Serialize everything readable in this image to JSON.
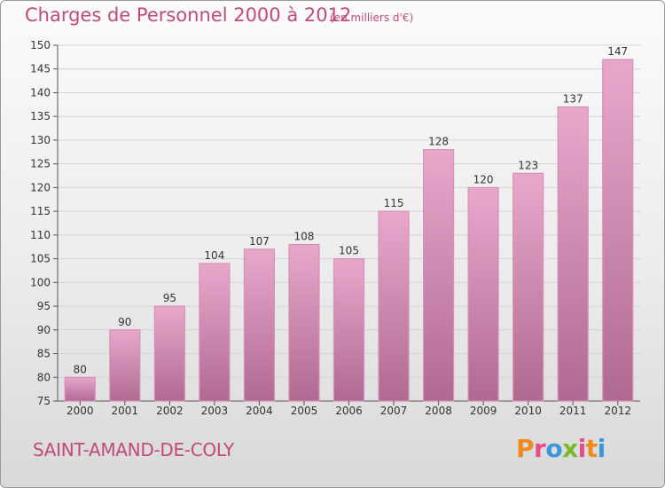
{
  "header": {
    "title": "Charges de Personnel 2000 à 2012",
    "subtitle": "(en milliers d'€)"
  },
  "footer": {
    "commune": "SAINT-AMAND-DE-COLY",
    "logo": "Proxiti"
  },
  "colors": {
    "bar_top": "#e8a8cc",
    "bar_bottom": "#b06a92",
    "title": "#c24a7a",
    "logo": [
      "#f08a1c",
      "#e84a8a",
      "#3a98d8",
      "#7ab828",
      "#e84a8a",
      "#f08a1c",
      "#3a98d8"
    ]
  },
  "chart_data": {
    "type": "bar",
    "title": "Charges de Personnel 2000 à 2012",
    "subtitle": "(en milliers d'€)",
    "categories": [
      "2000",
      "2001",
      "2002",
      "2003",
      "2004",
      "2005",
      "2006",
      "2007",
      "2008",
      "2009",
      "2010",
      "2011",
      "2012"
    ],
    "values": [
      80,
      90,
      95,
      104,
      107,
      108,
      105,
      115,
      128,
      120,
      123,
      137,
      147
    ],
    "ylim": [
      75,
      150
    ],
    "yticks": [
      75,
      80,
      85,
      90,
      95,
      100,
      105,
      110,
      115,
      120,
      125,
      130,
      135,
      140,
      145,
      150
    ],
    "grid": true
  }
}
